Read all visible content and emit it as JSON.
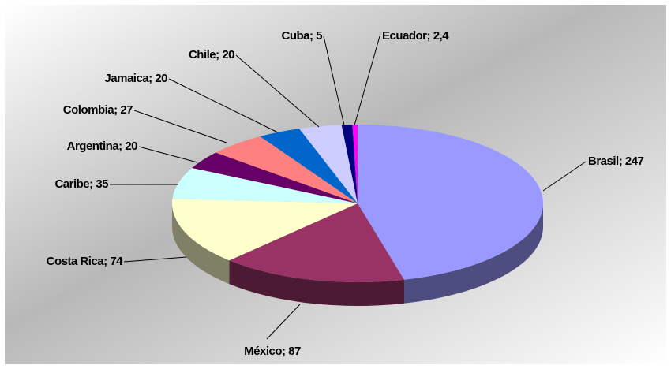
{
  "chart_data": {
    "type": "pie",
    "separator": "; ",
    "categories": [
      "Brasil",
      "México",
      "Costa Rica",
      "Caribe",
      "Argentina",
      "Colombia",
      "Jamaica",
      "Chile",
      "Cuba",
      "Ecuador"
    ],
    "values": [
      247,
      87,
      74,
      35,
      20,
      27,
      20,
      20,
      5,
      2.4
    ],
    "value_labels": [
      "247",
      "87",
      "74",
      "35",
      "20",
      "27",
      "20",
      "20",
      "5",
      "2,4"
    ],
    "colors": [
      "#9999ff",
      "#993366",
      "#ffffcc",
      "#ccffff",
      "#660066",
      "#ff8080",
      "#0066cc",
      "#ccccff",
      "#000080",
      "#ff00ff"
    ]
  }
}
